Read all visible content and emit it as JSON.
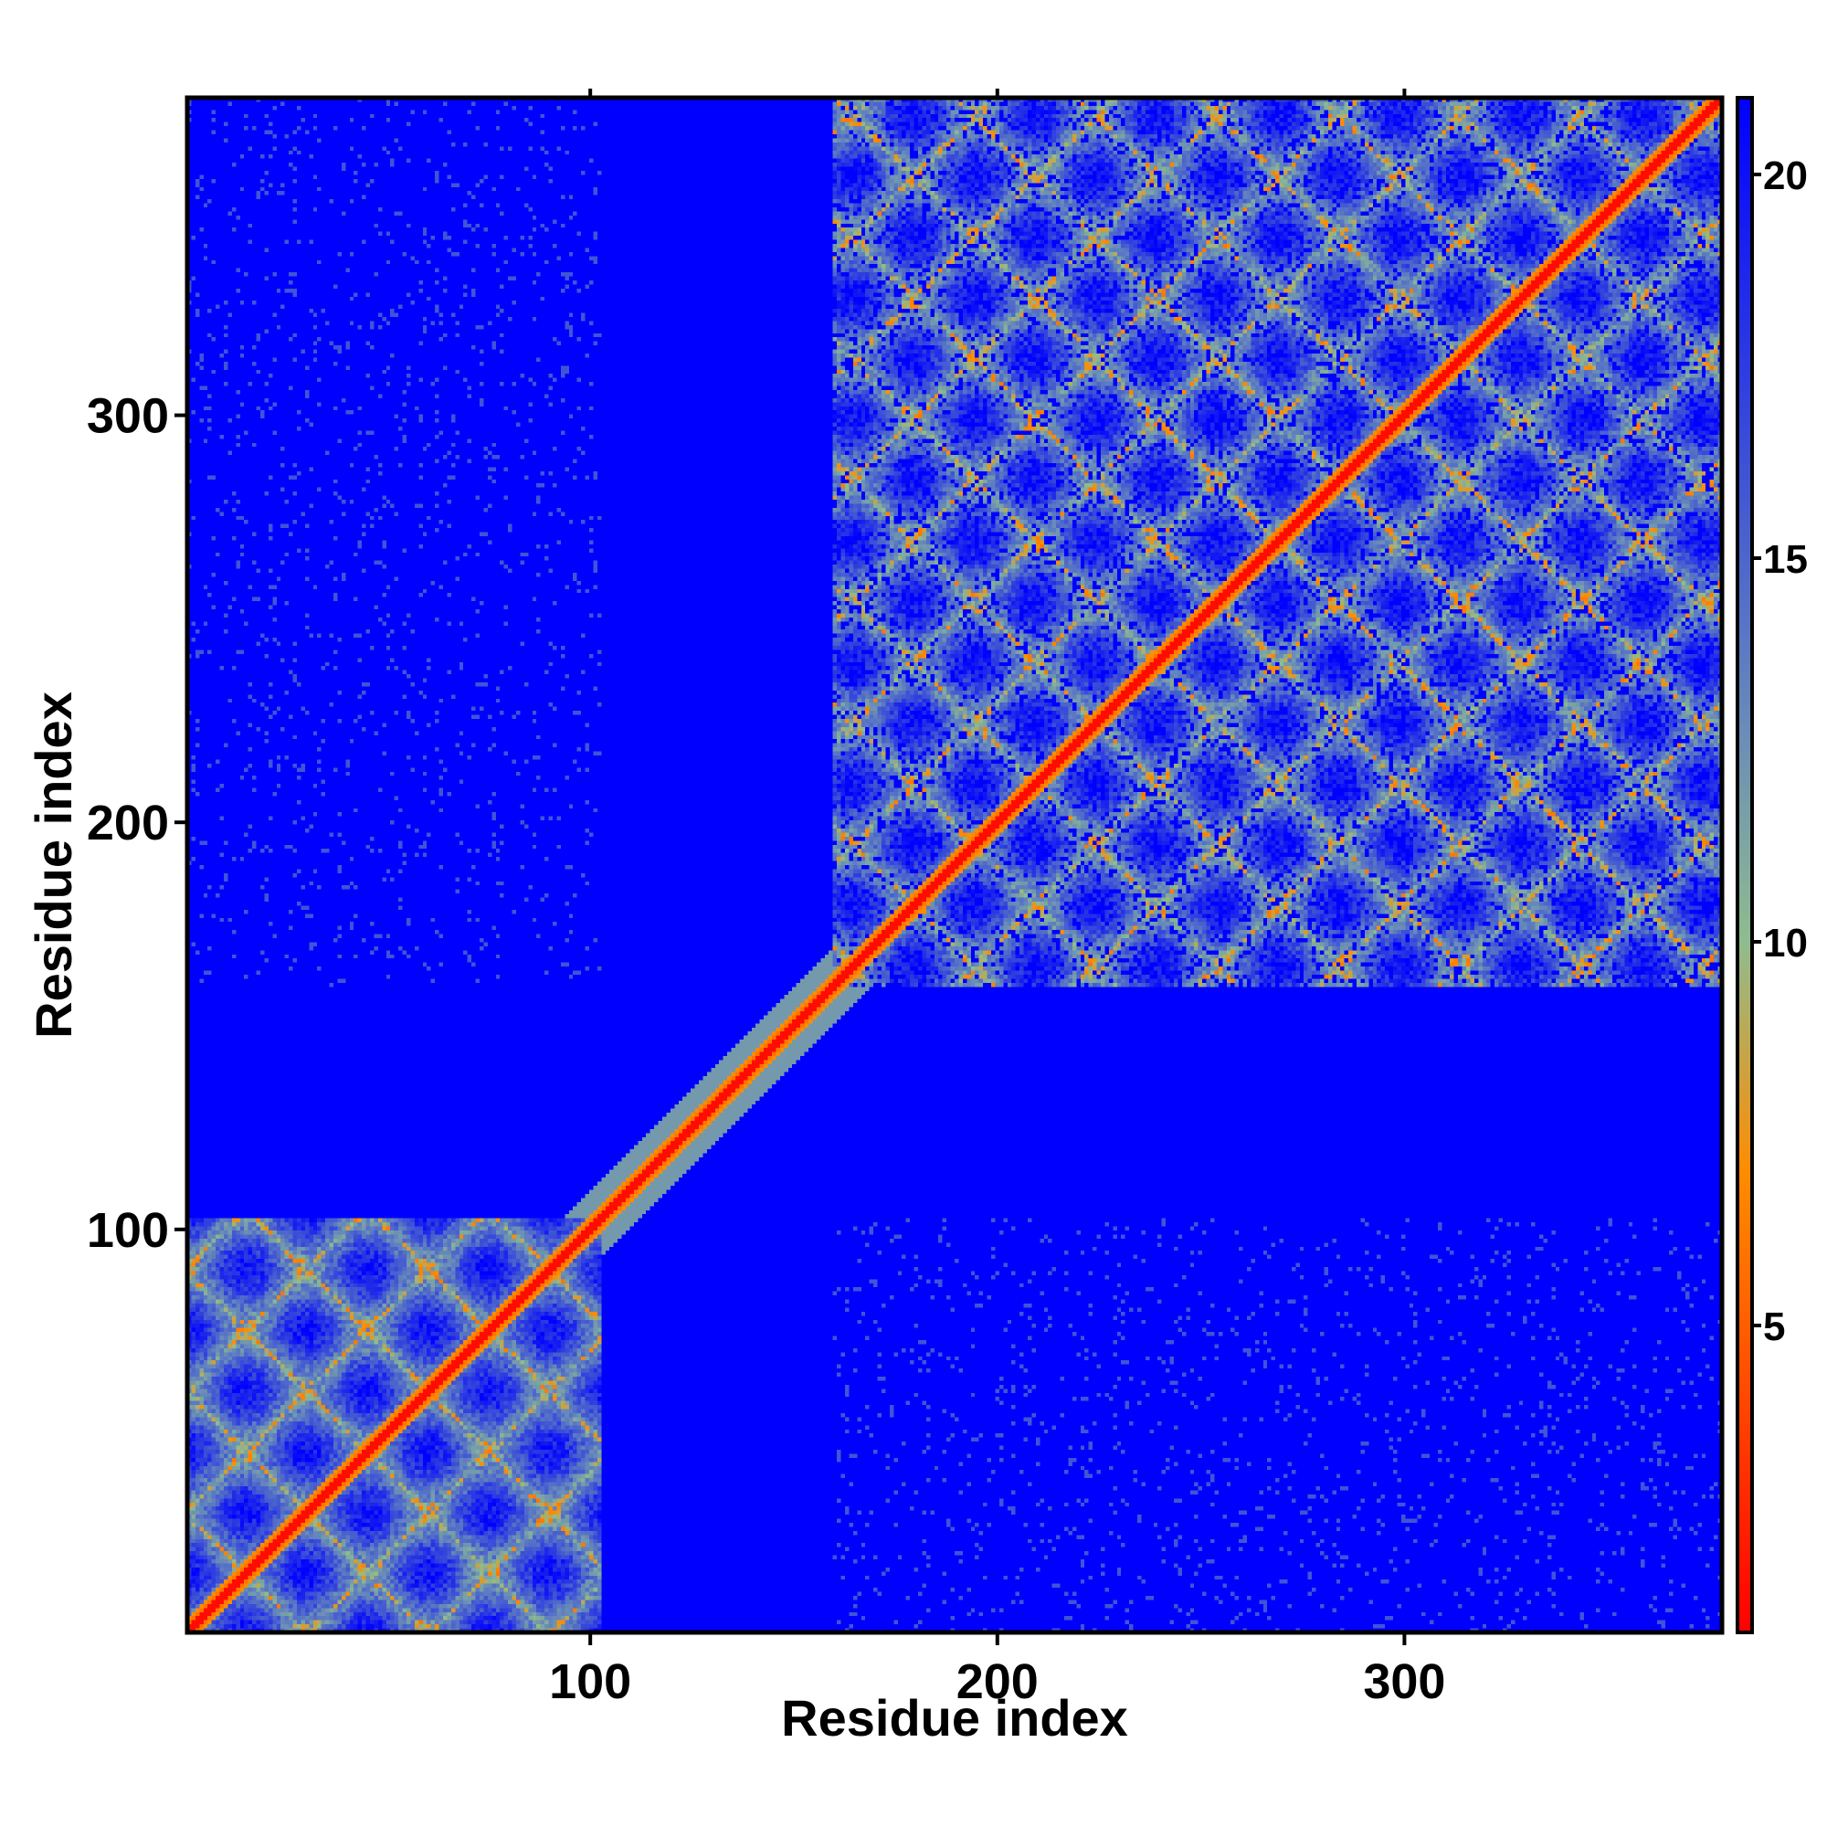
{
  "chart_data": {
    "type": "heatmap",
    "title": "",
    "xlabel": "Residue index",
    "ylabel": "Residue index",
    "xlim": [
      1,
      378
    ],
    "ylim": [
      1,
      378
    ],
    "x_ticks": [
      100,
      200,
      300
    ],
    "y_ticks": [
      100,
      200,
      300
    ],
    "colorbar": {
      "ticks": [
        5,
        10,
        15,
        20
      ],
      "range": [
        1,
        21
      ],
      "colors": [
        "#ff0000",
        "#ff8c00",
        "#8fbc8f",
        "#6688bb",
        "#0000ff"
      ],
      "stops": [
        1,
        7,
        10,
        13,
        21
      ]
    },
    "domains": [
      {
        "start": 1,
        "end": 102
      },
      {
        "start": 160,
        "end": 378
      }
    ],
    "diagonal": {
      "start": 1,
      "end": 378
    }
  }
}
